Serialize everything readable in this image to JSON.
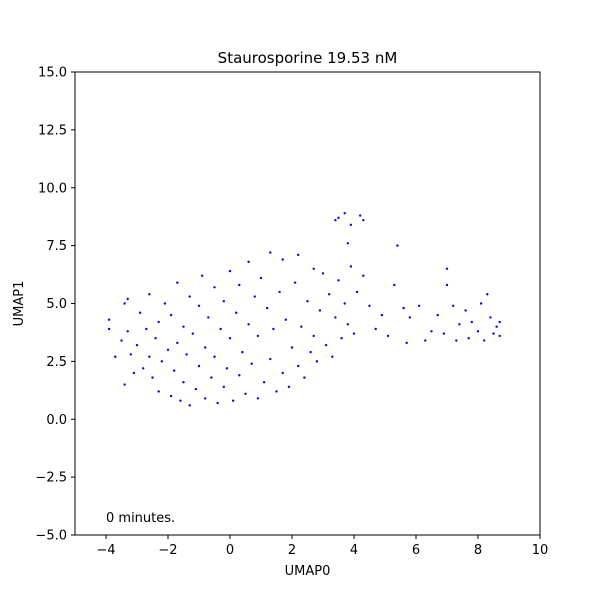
{
  "chart_data": {
    "type": "scatter",
    "title": "Staurosporine 19.53 nM",
    "xlabel": "UMAP0",
    "ylabel": "UMAP1",
    "xlim": [
      -5,
      10
    ],
    "ylim": [
      -5,
      15
    ],
    "xticks": [
      -4,
      -2,
      0,
      2,
      4,
      6,
      8,
      10
    ],
    "yticks": [
      -5.0,
      -2.5,
      0.0,
      2.5,
      5.0,
      7.5,
      10.0,
      12.5,
      15.0
    ],
    "xtick_labels": [
      "−4",
      "−2",
      "0",
      "2",
      "4",
      "6",
      "8",
      "10"
    ],
    "ytick_labels": [
      "−5.0",
      "−2.5",
      "0.0",
      "2.5",
      "5.0",
      "7.5",
      "10.0",
      "12.5",
      "15.0"
    ],
    "annotation": "0 minutes.",
    "grid": false,
    "marker_color": "#0000ff",
    "series": [
      {
        "values": [
          [
            -3.9,
            3.9
          ],
          [
            -3.9,
            4.3
          ],
          [
            -3.7,
            2.7
          ],
          [
            -3.5,
            3.4
          ],
          [
            -3.4,
            1.5
          ],
          [
            -3.4,
            5.0
          ],
          [
            -3.3,
            5.2
          ],
          [
            -3.3,
            3.8
          ],
          [
            -3.2,
            2.8
          ],
          [
            -3.1,
            2.0
          ],
          [
            -3.0,
            3.2
          ],
          [
            -2.9,
            4.6
          ],
          [
            -2.8,
            2.2
          ],
          [
            -2.7,
            3.9
          ],
          [
            -2.6,
            2.7
          ],
          [
            -2.6,
            5.4
          ],
          [
            -2.5,
            1.8
          ],
          [
            -2.4,
            3.5
          ],
          [
            -2.3,
            4.2
          ],
          [
            -2.3,
            1.2
          ],
          [
            -2.2,
            2.5
          ],
          [
            -2.1,
            5.0
          ],
          [
            -2.0,
            3.0
          ],
          [
            -1.9,
            1.0
          ],
          [
            -1.9,
            4.5
          ],
          [
            -1.8,
            2.1
          ],
          [
            -1.7,
            5.9
          ],
          [
            -1.7,
            3.3
          ],
          [
            -1.6,
            0.8
          ],
          [
            -1.5,
            4.0
          ],
          [
            -1.5,
            1.6
          ],
          [
            -1.4,
            2.8
          ],
          [
            -1.3,
            5.3
          ],
          [
            -1.3,
            0.6
          ],
          [
            -1.2,
            3.7
          ],
          [
            -1.1,
            1.3
          ],
          [
            -1.0,
            4.9
          ],
          [
            -1.0,
            2.3
          ],
          [
            -0.9,
            6.2
          ],
          [
            -0.8,
            0.9
          ],
          [
            -0.8,
            3.1
          ],
          [
            -0.7,
            4.4
          ],
          [
            -0.6,
            1.8
          ],
          [
            -0.5,
            5.7
          ],
          [
            -0.5,
            2.7
          ],
          [
            -0.4,
            0.7
          ],
          [
            -0.3,
            3.9
          ],
          [
            -0.2,
            1.4
          ],
          [
            -0.2,
            5.1
          ],
          [
            -0.1,
            2.2
          ],
          [
            0.0,
            6.4
          ],
          [
            0.0,
            3.5
          ],
          [
            0.1,
            0.8
          ],
          [
            0.2,
            4.6
          ],
          [
            0.3,
            1.9
          ],
          [
            0.3,
            5.8
          ],
          [
            0.4,
            2.9
          ],
          [
            0.5,
            1.1
          ],
          [
            0.6,
            4.1
          ],
          [
            0.6,
            6.8
          ],
          [
            0.7,
            2.4
          ],
          [
            0.8,
            5.3
          ],
          [
            0.9,
            0.9
          ],
          [
            0.9,
            3.6
          ],
          [
            1.0,
            6.1
          ],
          [
            1.1,
            1.6
          ],
          [
            1.2,
            4.8
          ],
          [
            1.3,
            7.2
          ],
          [
            1.3,
            2.6
          ],
          [
            1.4,
            3.9
          ],
          [
            1.5,
            1.2
          ],
          [
            1.6,
            5.5
          ],
          [
            1.7,
            2.0
          ],
          [
            1.7,
            6.9
          ],
          [
            1.8,
            4.3
          ],
          [
            1.9,
            1.4
          ],
          [
            2.0,
            3.1
          ],
          [
            2.1,
            5.9
          ],
          [
            2.2,
            2.3
          ],
          [
            2.2,
            7.1
          ],
          [
            2.3,
            4.0
          ],
          [
            2.4,
            1.8
          ],
          [
            2.5,
            5.1
          ],
          [
            2.6,
            2.9
          ],
          [
            2.7,
            6.5
          ],
          [
            2.7,
            3.6
          ],
          [
            2.8,
            2.5
          ],
          [
            2.9,
            4.7
          ],
          [
            3.0,
            6.3
          ],
          [
            3.1,
            3.2
          ],
          [
            3.2,
            5.4
          ],
          [
            3.3,
            2.7
          ],
          [
            3.4,
            4.4
          ],
          [
            3.5,
            6.0
          ],
          [
            3.6,
            3.5
          ],
          [
            3.7,
            5.0
          ],
          [
            3.8,
            4.1
          ],
          [
            3.9,
            6.6
          ],
          [
            4.0,
            3.7
          ],
          [
            3.5,
            8.7
          ],
          [
            3.7,
            8.9
          ],
          [
            3.9,
            8.4
          ],
          [
            4.2,
            8.8
          ],
          [
            4.3,
            8.6
          ],
          [
            3.4,
            8.6
          ],
          [
            3.8,
            7.6
          ],
          [
            4.1,
            5.5
          ],
          [
            4.3,
            6.2
          ],
          [
            4.5,
            4.9
          ],
          [
            4.7,
            3.9
          ],
          [
            4.9,
            4.5
          ],
          [
            5.1,
            3.6
          ],
          [
            5.3,
            5.8
          ],
          [
            5.4,
            7.5
          ],
          [
            5.6,
            4.8
          ],
          [
            5.8,
            4.4
          ],
          [
            5.7,
            3.3
          ],
          [
            6.1,
            4.9
          ],
          [
            6.3,
            3.4
          ],
          [
            6.5,
            3.8
          ],
          [
            6.7,
            4.5
          ],
          [
            6.9,
            3.7
          ],
          [
            7.0,
            5.8
          ],
          [
            7.0,
            6.5
          ],
          [
            7.2,
            4.9
          ],
          [
            7.3,
            3.4
          ],
          [
            7.4,
            4.1
          ],
          [
            7.6,
            4.7
          ],
          [
            7.7,
            3.5
          ],
          [
            7.8,
            4.2
          ],
          [
            8.0,
            3.8
          ],
          [
            8.1,
            5.0
          ],
          [
            8.2,
            3.4
          ],
          [
            8.3,
            5.4
          ],
          [
            8.4,
            4.4
          ],
          [
            8.5,
            3.7
          ],
          [
            8.6,
            4.0
          ],
          [
            8.7,
            3.6
          ],
          [
            8.7,
            4.2
          ]
        ]
      }
    ]
  }
}
